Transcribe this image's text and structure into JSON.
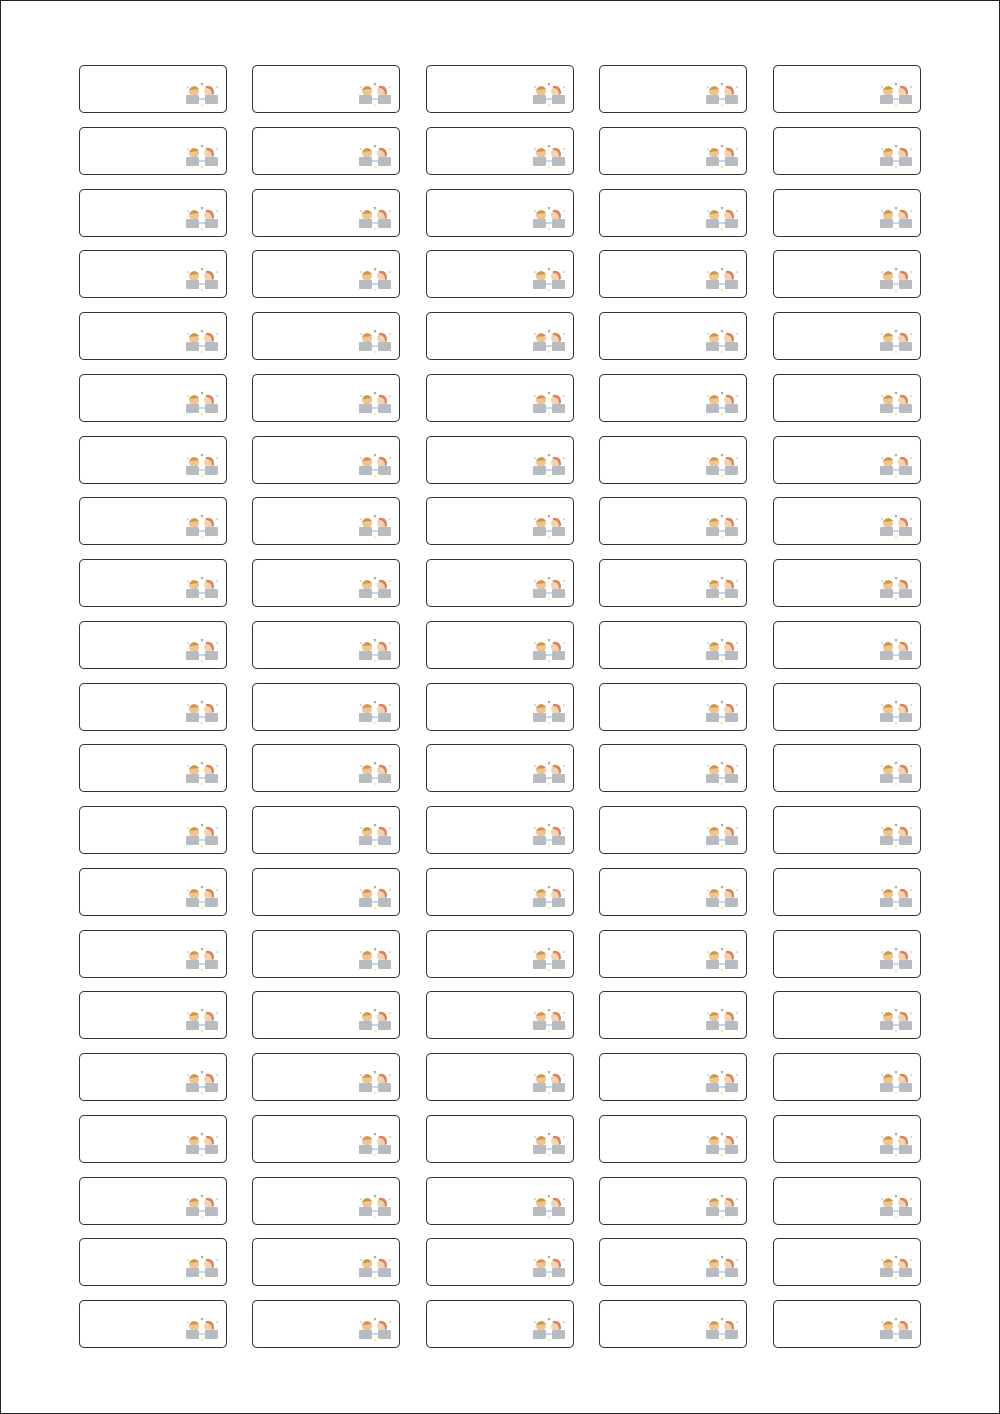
{
  "sheet": {
    "rows": 21,
    "columns": 5,
    "label_icon": "two-people-with-laptops-illustration",
    "colors": {
      "border": "#333333",
      "skin_left": "#f0c48a",
      "hair_right": "#d9825b",
      "laptop": "#b8bcc0",
      "accent": "#7fb8d8"
    }
  }
}
